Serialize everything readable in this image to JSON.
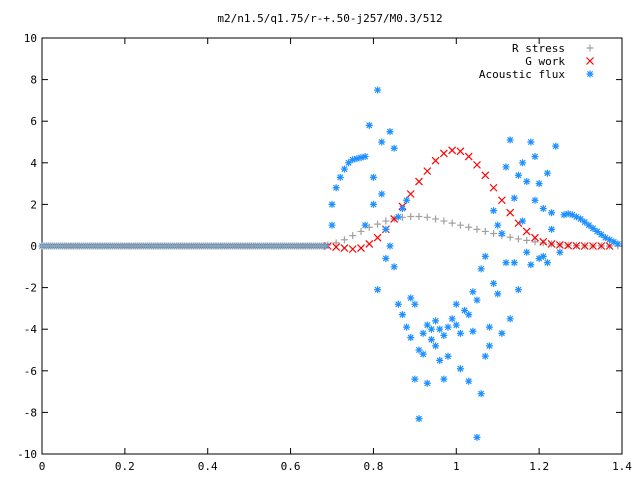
{
  "chart_data": {
    "type": "scatter",
    "title": "m2/n1.5/q1.75/r-+.50-j257/M0.3/512",
    "xlabel": "",
    "ylabel": "",
    "xlim": [
      0,
      1.4
    ],
    "ylim": [
      -10,
      10
    ],
    "xticks": [
      0,
      0.2,
      0.4,
      0.6,
      0.8,
      1,
      1.2,
      1.4
    ],
    "xtick_labels": [
      "0",
      "0.2",
      "0.4",
      "0.6",
      "0.8",
      "1",
      "1.2",
      "1.4"
    ],
    "yticks": [
      -10,
      -8,
      -6,
      -4,
      -2,
      0,
      2,
      4,
      6,
      8,
      10
    ],
    "ytick_labels": [
      "-10",
      "-8",
      "-6",
      "-4",
      "-2",
      "0",
      "2",
      "4",
      "6",
      "8",
      "10"
    ],
    "grid": false,
    "legend_position": "top-right",
    "series": [
      {
        "name": "R stress",
        "marker": "+",
        "color": "#a0a0a0",
        "points": [
          [
            0.69,
            0.05
          ],
          [
            0.71,
            0.15
          ],
          [
            0.73,
            0.3
          ],
          [
            0.75,
            0.5
          ],
          [
            0.77,
            0.7
          ],
          [
            0.79,
            0.9
          ],
          [
            0.81,
            1.05
          ],
          [
            0.83,
            1.2
          ],
          [
            0.85,
            1.3
          ],
          [
            0.87,
            1.38
          ],
          [
            0.89,
            1.42
          ],
          [
            0.91,
            1.42
          ],
          [
            0.93,
            1.38
          ],
          [
            0.95,
            1.3
          ],
          [
            0.97,
            1.2
          ],
          [
            0.99,
            1.1
          ],
          [
            1.01,
            1.0
          ],
          [
            1.03,
            0.9
          ],
          [
            1.05,
            0.8
          ],
          [
            1.07,
            0.7
          ],
          [
            1.09,
            0.6
          ],
          [
            1.11,
            0.5
          ],
          [
            1.13,
            0.42
          ],
          [
            1.15,
            0.34
          ],
          [
            1.17,
            0.27
          ],
          [
            1.19,
            0.2
          ],
          [
            1.21,
            0.15
          ],
          [
            1.23,
            0.1
          ],
          [
            1.25,
            0.06
          ],
          [
            1.27,
            0.04
          ],
          [
            1.29,
            0.02
          ],
          [
            1.31,
            0.01
          ],
          [
            1.33,
            0.0
          ],
          [
            1.35,
            0.0
          ],
          [
            1.37,
            0.0
          ],
          [
            1.39,
            0.0
          ]
        ]
      },
      {
        "name": "G work",
        "marker": "x",
        "color": "#ff0000",
        "points": [
          [
            0.69,
            0.0
          ],
          [
            0.71,
            -0.05
          ],
          [
            0.73,
            -0.1
          ],
          [
            0.75,
            -0.15
          ],
          [
            0.77,
            -0.1
          ],
          [
            0.79,
            0.1
          ],
          [
            0.81,
            0.4
          ],
          [
            0.83,
            0.8
          ],
          [
            0.85,
            1.3
          ],
          [
            0.87,
            1.9
          ],
          [
            0.89,
            2.5
          ],
          [
            0.91,
            3.1
          ],
          [
            0.93,
            3.6
          ],
          [
            0.95,
            4.1
          ],
          [
            0.97,
            4.45
          ],
          [
            0.99,
            4.6
          ],
          [
            1.01,
            4.55
          ],
          [
            1.03,
            4.3
          ],
          [
            1.05,
            3.9
          ],
          [
            1.07,
            3.4
          ],
          [
            1.09,
            2.8
          ],
          [
            1.11,
            2.2
          ],
          [
            1.13,
            1.6
          ],
          [
            1.15,
            1.1
          ],
          [
            1.17,
            0.7
          ],
          [
            1.19,
            0.4
          ],
          [
            1.21,
            0.2
          ],
          [
            1.23,
            0.1
          ],
          [
            1.25,
            0.05
          ],
          [
            1.27,
            0.02
          ],
          [
            1.29,
            0.01
          ],
          [
            1.31,
            0.0
          ],
          [
            1.33,
            0.0
          ],
          [
            1.35,
            0.0
          ],
          [
            1.37,
            0.0
          ]
        ]
      },
      {
        "name": "Acoustic flux",
        "marker": "*",
        "color": "#1e90ff",
        "points": [
          [
            0.7,
            1.0
          ],
          [
            0.7,
            2.0
          ],
          [
            0.71,
            2.8
          ],
          [
            0.72,
            3.3
          ],
          [
            0.73,
            3.7
          ],
          [
            0.74,
            4.0
          ],
          [
            0.75,
            4.15
          ],
          [
            0.76,
            4.2
          ],
          [
            0.77,
            4.25
          ],
          [
            0.78,
            4.3
          ],
          [
            0.78,
            1.0
          ],
          [
            0.79,
            5.8
          ],
          [
            0.8,
            3.3
          ],
          [
            0.8,
            2.0
          ],
          [
            0.81,
            7.5
          ],
          [
            0.81,
            -2.1
          ],
          [
            0.82,
            5.0
          ],
          [
            0.82,
            2.5
          ],
          [
            0.83,
            -0.6
          ],
          [
            0.83,
            0.8
          ],
          [
            0.84,
            5.5
          ],
          [
            0.84,
            0.0
          ],
          [
            0.85,
            4.7
          ],
          [
            0.85,
            -1.0
          ],
          [
            0.86,
            1.4
          ],
          [
            0.86,
            -2.8
          ],
          [
            0.87,
            -3.3
          ],
          [
            0.87,
            1.8
          ],
          [
            0.88,
            2.2
          ],
          [
            0.88,
            -3.9
          ],
          [
            0.89,
            -2.5
          ],
          [
            0.89,
            -4.4
          ],
          [
            0.9,
            -6.4
          ],
          [
            0.9,
            -2.8
          ],
          [
            0.91,
            -8.3
          ],
          [
            0.91,
            -5.0
          ],
          [
            0.92,
            -4.2
          ],
          [
            0.92,
            -5.2
          ],
          [
            0.93,
            -6.6
          ],
          [
            0.93,
            -3.8
          ],
          [
            0.94,
            -4.0
          ],
          [
            0.94,
            -4.5
          ],
          [
            0.95,
            -4.8
          ],
          [
            0.95,
            -3.6
          ],
          [
            0.96,
            -5.5
          ],
          [
            0.96,
            -4.0
          ],
          [
            0.97,
            -6.4
          ],
          [
            0.97,
            -4.3
          ],
          [
            0.98,
            -3.9
          ],
          [
            0.98,
            -5.3
          ],
          [
            0.99,
            -3.5
          ],
          [
            1.0,
            -3.8
          ],
          [
            1.0,
            -2.8
          ],
          [
            1.01,
            -4.2
          ],
          [
            1.01,
            -5.9
          ],
          [
            1.02,
            -3.1
          ],
          [
            1.03,
            -3.3
          ],
          [
            1.03,
            -6.5
          ],
          [
            1.04,
            -2.2
          ],
          [
            1.04,
            -4.1
          ],
          [
            1.05,
            -9.2
          ],
          [
            1.05,
            -2.6
          ],
          [
            1.06,
            -7.1
          ],
          [
            1.06,
            -1.1
          ],
          [
            1.07,
            -5.3
          ],
          [
            1.07,
            -0.5
          ],
          [
            1.08,
            -4.8
          ],
          [
            1.08,
            -3.9
          ],
          [
            1.09,
            -1.8
          ],
          [
            1.09,
            1.7
          ],
          [
            1.1,
            -2.3
          ],
          [
            1.1,
            1.0
          ],
          [
            1.11,
            -4.2
          ],
          [
            1.11,
            0.6
          ],
          [
            1.12,
            -0.8
          ],
          [
            1.12,
            3.8
          ],
          [
            1.13,
            -3.5
          ],
          [
            1.13,
            5.1
          ],
          [
            1.14,
            -0.8
          ],
          [
            1.14,
            2.3
          ],
          [
            1.15,
            -2.1
          ],
          [
            1.15,
            3.4
          ],
          [
            1.16,
            1.2
          ],
          [
            1.16,
            4.0
          ],
          [
            1.17,
            -0.3
          ],
          [
            1.17,
            3.1
          ],
          [
            1.18,
            -0.9
          ],
          [
            1.18,
            5.0
          ],
          [
            1.19,
            2.2
          ],
          [
            1.19,
            4.3
          ],
          [
            1.2,
            -0.6
          ],
          [
            1.2,
            3.0
          ],
          [
            1.21,
            -0.5
          ],
          [
            1.21,
            1.8
          ],
          [
            1.22,
            -0.8
          ],
          [
            1.22,
            3.5
          ],
          [
            1.23,
            1.6
          ],
          [
            1.23,
            0.8
          ],
          [
            1.24,
            4.8
          ],
          [
            1.25,
            -0.3
          ],
          [
            1.26,
            1.5
          ],
          [
            1.27,
            1.55
          ],
          [
            1.28,
            1.5
          ],
          [
            1.29,
            1.4
          ],
          [
            1.3,
            1.3
          ],
          [
            1.31,
            1.15
          ],
          [
            1.32,
            1.0
          ],
          [
            1.33,
            0.85
          ],
          [
            1.34,
            0.7
          ],
          [
            1.35,
            0.55
          ],
          [
            1.36,
            0.4
          ],
          [
            1.37,
            0.3
          ],
          [
            1.38,
            0.2
          ],
          [
            1.39,
            0.1
          ]
        ]
      }
    ]
  }
}
